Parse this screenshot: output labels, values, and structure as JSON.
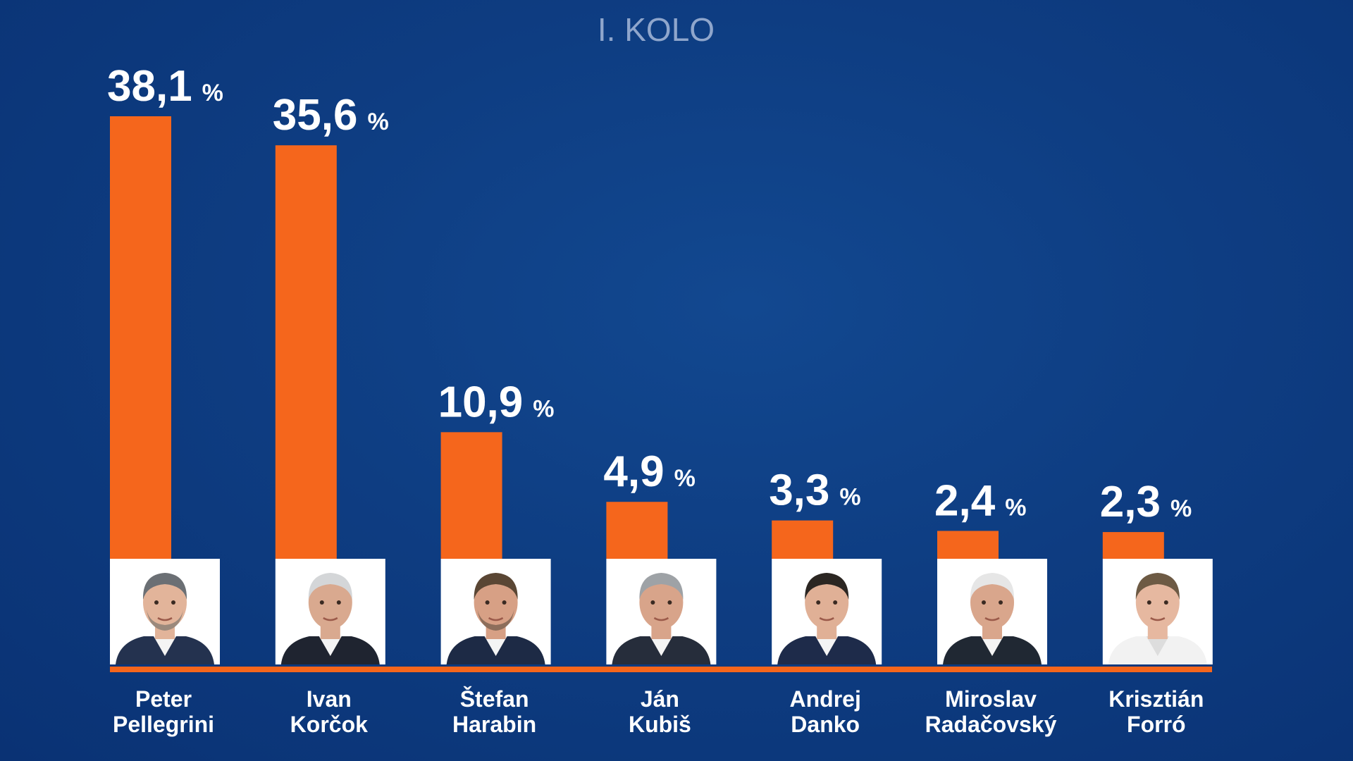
{
  "chart_data": {
    "type": "bar",
    "title": "I. KOLO",
    "unit": "%",
    "categories": [
      [
        "Peter",
        "Pellegrini"
      ],
      [
        "Ivan",
        "Korčok"
      ],
      [
        "Štefan",
        "Harabin"
      ],
      [
        "Ján",
        "Kubiš"
      ],
      [
        "Andrej",
        "Danko"
      ],
      [
        "Miroslav",
        "Radačovský"
      ],
      [
        "Krisztián",
        "Forró"
      ]
    ],
    "values": [
      38.1,
      35.6,
      10.9,
      4.9,
      3.3,
      2.4,
      2.3
    ],
    "value_labels": [
      "38,1",
      "35,6",
      "10,9",
      "4,9",
      "3,3",
      "2,4",
      "2,3"
    ],
    "bar_color": "#f5661c",
    "baseline_color": "#f5661c",
    "background_color": "#0e3d82",
    "portraits": true
  }
}
